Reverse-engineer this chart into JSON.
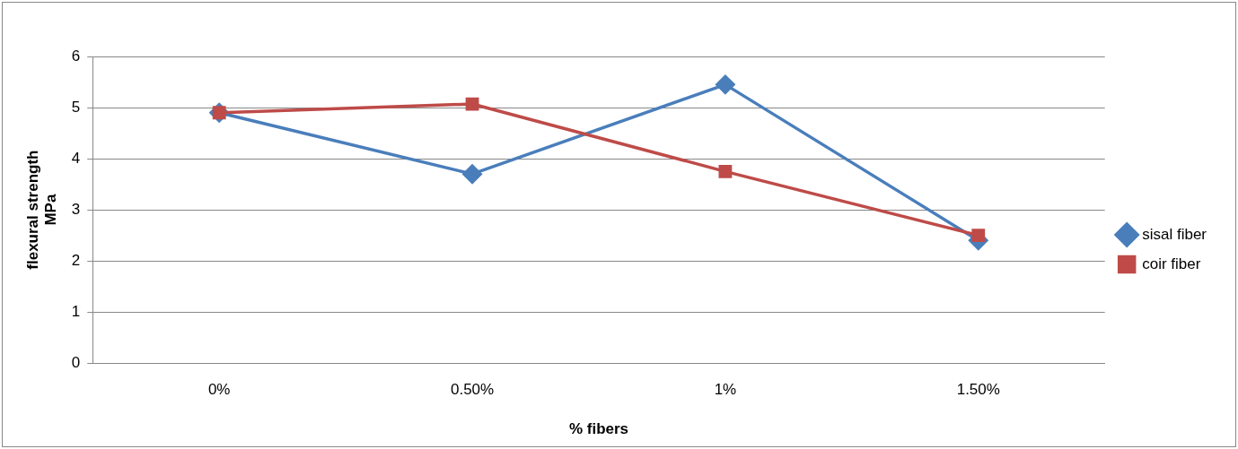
{
  "chart_data": {
    "type": "line",
    "xlabel": "% fibers",
    "ylabel": "flexural strength\nMPa",
    "categories": [
      "0%",
      "0.50%",
      "1%",
      "1.50%"
    ],
    "series": [
      {
        "name": "sisal fiber",
        "color": "#4a7ebb",
        "marker": "diamond",
        "values": [
          4.9,
          3.7,
          5.45,
          2.4
        ]
      },
      {
        "name": "coir fiber",
        "color": "#be4b48",
        "marker": "square",
        "values": [
          4.9,
          5.07,
          3.75,
          2.5
        ]
      }
    ],
    "ylim": [
      0,
      6
    ],
    "yticks": [
      0,
      1,
      2,
      3,
      4,
      5,
      6
    ],
    "grid": "y",
    "legend": "right",
    "line_style": "solid"
  }
}
